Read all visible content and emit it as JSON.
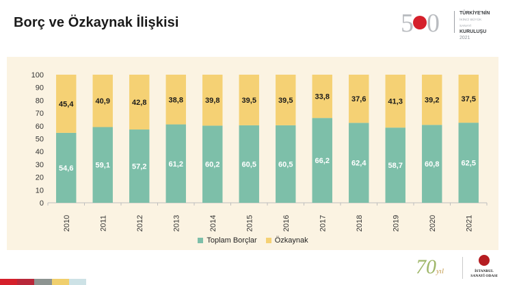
{
  "page": {
    "title": "Borç ve Özkaynak İlişkisi"
  },
  "header_logo": {
    "number": "500",
    "line1": "TÜRKİYE'NİN",
    "line2": "İKİNCİ BÜYÜK SANAYİ",
    "line3": "KURULUŞU",
    "year": "2021"
  },
  "footer_logo": {
    "seventy": "70",
    "yil": "yıl",
    "org_line1": "İSTANBUL",
    "org_line2": "SANAYİ ODASI"
  },
  "colors": {
    "debt": "#7dbfa9",
    "equity": "#f5d174",
    "panel": "#fbf3e2",
    "stripe": [
      "#d5202b",
      "#b8283a",
      "#8d9491",
      "#f0cf6d",
      "#cde2e6"
    ]
  },
  "legend": {
    "debt_label": "Toplam Borçlar",
    "equity_label": "Özkaynak"
  },
  "chart_data": {
    "type": "bar",
    "stacked": true,
    "title": "",
    "xlabel": "",
    "ylabel": "",
    "ylim": [
      0,
      100
    ],
    "yticks": [
      0,
      10,
      20,
      30,
      40,
      50,
      60,
      70,
      80,
      90,
      100
    ],
    "grid": false,
    "legend_position": "bottom",
    "categories": [
      "2010",
      "2011",
      "2012",
      "2013",
      "2014",
      "2015",
      "2016",
      "2017",
      "2018",
      "2019",
      "2020",
      "2021"
    ],
    "series": [
      {
        "name": "Toplam Borçlar",
        "values": [
          54.6,
          59.1,
          57.2,
          61.2,
          60.2,
          60.5,
          60.5,
          66.2,
          62.4,
          58.7,
          60.8,
          62.5
        ],
        "labels": [
          "54,6",
          "59,1",
          "57,2",
          "61,2",
          "60,2",
          "60,5",
          "60,5",
          "66,2",
          "62,4",
          "58,7",
          "60,8",
          "62,5"
        ]
      },
      {
        "name": "Özkaynak",
        "values": [
          45.4,
          40.9,
          42.8,
          38.8,
          39.8,
          39.5,
          39.5,
          33.8,
          37.6,
          41.3,
          39.2,
          37.5
        ],
        "labels": [
          "45,4",
          "40,9",
          "42,8",
          "38,8",
          "39,8",
          "39,5",
          "39,5",
          "33,8",
          "37,6",
          "41,3",
          "39,2",
          "37,5"
        ]
      }
    ]
  }
}
